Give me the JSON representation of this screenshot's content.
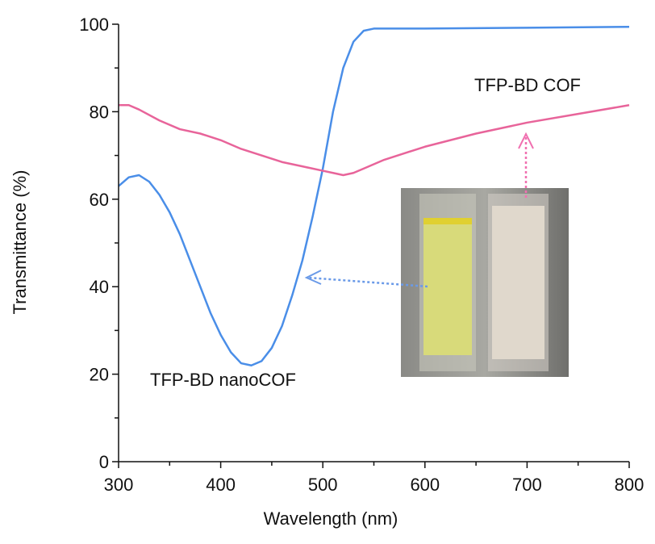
{
  "chart_data": {
    "type": "line",
    "xlabel": "Wavelength (nm)",
    "ylabel": "Transmittance (%)",
    "xlim": [
      300,
      800
    ],
    "ylim": [
      0,
      100
    ],
    "xticks": [
      300,
      400,
      500,
      600,
      700,
      800
    ],
    "yticks": [
      0,
      20,
      40,
      60,
      80,
      100
    ],
    "xminorticks": [
      350,
      450,
      550,
      650,
      750
    ],
    "yminorticks": [
      10,
      30,
      50,
      70,
      90
    ],
    "series": [
      {
        "name": "TFP-BD nanoCOF",
        "color": "#4a8ee8",
        "x": [
          300,
          310,
          320,
          330,
          340,
          350,
          360,
          370,
          380,
          390,
          400,
          410,
          420,
          430,
          440,
          450,
          460,
          470,
          480,
          490,
          500,
          510,
          520,
          530,
          540,
          550,
          560,
          600,
          700,
          800
        ],
        "values": [
          63,
          65,
          65.5,
          64,
          61,
          57,
          52,
          46,
          40,
          34,
          29,
          25,
          22.5,
          22,
          23,
          26,
          31,
          38,
          46,
          56,
          67,
          80,
          90,
          96,
          98.5,
          99,
          99,
          99,
          99.2,
          99.4
        ]
      },
      {
        "name": "TFP-BD COF",
        "color": "#e8649a",
        "x": [
          300,
          310,
          320,
          340,
          360,
          380,
          400,
          420,
          440,
          460,
          480,
          500,
          510,
          520,
          530,
          540,
          560,
          600,
          650,
          700,
          750,
          800
        ],
        "values": [
          81.5,
          81.5,
          80.5,
          78,
          76,
          75,
          73.5,
          71.5,
          70,
          68.5,
          67.5,
          66.5,
          66,
          65.5,
          66,
          67,
          69,
          72,
          75,
          77.5,
          79.5,
          81.5
        ]
      }
    ]
  }
}
